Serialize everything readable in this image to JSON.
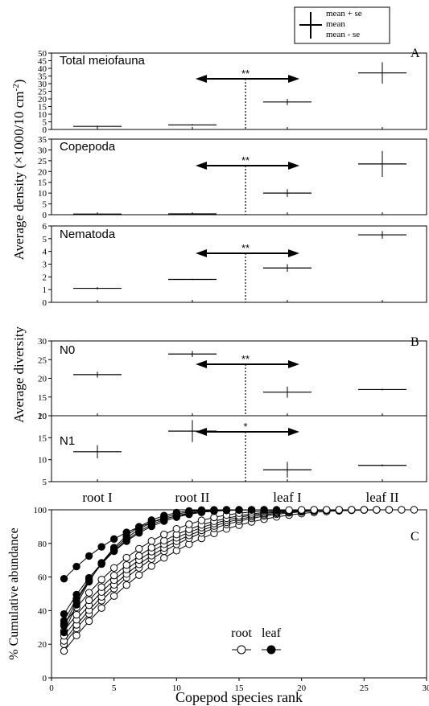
{
  "legend": {
    "items": [
      {
        "label": "mean + se"
      },
      {
        "label": "mean"
      },
      {
        "label": "mean - se"
      }
    ]
  },
  "chart_data": [
    {
      "type": "scatter",
      "panel_letter": "A",
      "title": "Total meiofauna",
      "categories": [
        "root I",
        "root II",
        "leaf I",
        "leaf II"
      ],
      "values": [
        2,
        3,
        18,
        37
      ],
      "se": [
        0.5,
        0.5,
        2,
        7
      ],
      "ylim": [
        0,
        50
      ],
      "yticks": [
        0,
        5,
        10,
        15,
        20,
        25,
        30,
        35,
        40,
        45,
        50
      ],
      "significance": "**"
    },
    {
      "type": "scatter",
      "title": "Copepoda",
      "categories": [
        "root I",
        "root II",
        "leaf I",
        "leaf II"
      ],
      "values": [
        0.3,
        0.4,
        10,
        23.5
      ],
      "se": [
        0.2,
        0.3,
        1.8,
        6
      ],
      "ylim": [
        0,
        35
      ],
      "yticks": [
        0,
        5,
        10,
        15,
        20,
        25,
        30,
        35
      ],
      "significance": "**"
    },
    {
      "type": "scatter",
      "title": "Nematoda",
      "categories": [
        "root I",
        "root II",
        "leaf I",
        "leaf II"
      ],
      "values": [
        1.1,
        1.8,
        2.7,
        5.3
      ],
      "se": [
        0.1,
        0.05,
        0.3,
        0.3
      ],
      "ylim": [
        0,
        6
      ],
      "yticks": [
        0,
        1,
        2,
        3,
        4,
        5,
        6
      ],
      "significance": "**"
    },
    {
      "type": "scatter",
      "panel_letter": "B",
      "title": "N0",
      "categories": [
        "root I",
        "root II",
        "leaf I",
        "leaf II"
      ],
      "values": [
        21,
        26.5,
        16.3,
        17
      ],
      "se": [
        0.8,
        0.8,
        1.5,
        0.2
      ],
      "ylim": [
        10,
        30
      ],
      "yticks": [
        10,
        15,
        20,
        25,
        30
      ],
      "significance": "**"
    },
    {
      "type": "scatter",
      "title": "N1",
      "categories": [
        "root I",
        "root II",
        "leaf I",
        "leaf II"
      ],
      "values": [
        11.8,
        16.5,
        7.7,
        8.7
      ],
      "se": [
        1.5,
        2.5,
        1.8,
        0.2
      ],
      "ylim": [
        5,
        20
      ],
      "yticks": [
        5,
        10,
        15,
        20
      ],
      "significance": "*"
    },
    {
      "type": "line",
      "panel_letter": "C",
      "xlabel": "Copepod species rank",
      "ylabel": "% Cumulative abundance",
      "xlim": [
        0,
        30
      ],
      "ylim": [
        0,
        100
      ],
      "xticks": [
        0,
        5,
        10,
        15,
        20,
        25,
        30
      ],
      "yticks": [
        0,
        20,
        40,
        60,
        80,
        100
      ],
      "legend_labels": {
        "root": "root",
        "leaf": "leaf"
      },
      "series": [
        {
          "group": "root",
          "n": 29,
          "first": 16
        },
        {
          "group": "root",
          "n": 27,
          "first": 20
        },
        {
          "group": "root",
          "n": 26,
          "first": 22
        },
        {
          "group": "root",
          "n": 25,
          "first": 25
        },
        {
          "group": "root",
          "n": 24,
          "first": 28
        },
        {
          "group": "root",
          "n": 22,
          "first": 32
        },
        {
          "group": "leaf",
          "n": 18,
          "first": 59
        },
        {
          "group": "leaf",
          "n": 17,
          "first": 38
        },
        {
          "group": "leaf",
          "n": 16,
          "first": 34
        },
        {
          "group": "leaf",
          "n": 15,
          "first": 31
        },
        {
          "group": "leaf",
          "n": 14,
          "first": 27
        }
      ]
    }
  ],
  "axes": {
    "density_ylabel": "Average density  (×1000/10 cm",
    "density_ylabel_sup": "-2",
    "density_ylabel_end": ")",
    "diversity_ylabel": "Average diversity"
  }
}
